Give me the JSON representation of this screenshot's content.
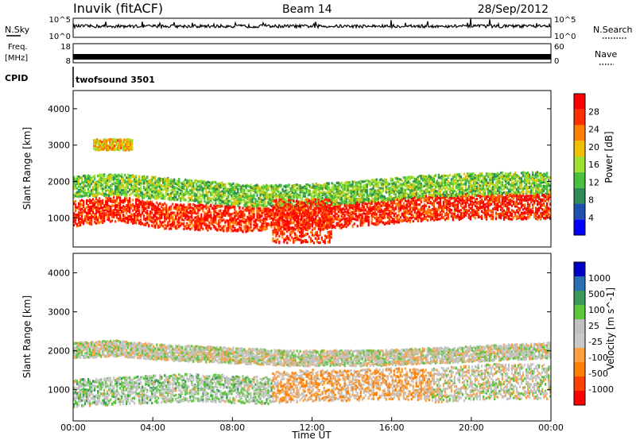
{
  "header": {
    "station": "Inuvik (fitACF)",
    "beam": "Beam 14",
    "date": "28/Sep/2012"
  },
  "noise_panel": {
    "left_label": "N.Sky",
    "right_label": "N.Search",
    "ticks": [
      "10^5",
      "10^0"
    ]
  },
  "freq_panel": {
    "left_label_1": "Freq.",
    "left_label_2": "[MHz]",
    "left_ticks": [
      "18",
      "8"
    ],
    "right_label": "Nave",
    "right_ticks": [
      "60",
      "0"
    ]
  },
  "cpid_panel": {
    "label": "CPID",
    "program": "twofsound 3501"
  },
  "colors": {
    "power": [
      "#0000ff",
      "#2050b0",
      "#2e8b57",
      "#48c040",
      "#a0e030",
      "#f0c000",
      "#ff8000",
      "#ff3000",
      "#ff0000"
    ],
    "velocity": [
      "#ff0000",
      "#ff4000",
      "#ff7f00",
      "#ffa040",
      "#c8c8c8",
      "#c0c0c0",
      "#5ac838",
      "#3a9a5a",
      "#2a70b0",
      "#0000c8"
    ]
  },
  "chart_data": [
    {
      "type": "heatmap",
      "name": "power",
      "xlabel": "",
      "ylabel": "Slant Range [km]",
      "xlim": [
        0,
        24
      ],
      "ylim": [
        200,
        4500
      ],
      "yticks": [
        "1000",
        "2000",
        "3000",
        "4000"
      ],
      "colorbar_label": "Power [dB]",
      "colorbar_ticks": [
        "4",
        "8",
        "12",
        "16",
        "20",
        "24",
        "28"
      ],
      "colorbar_range": [
        0,
        32
      ],
      "bands": [
        {
          "t_start": 0,
          "t_end": 24,
          "r_center": [
            1100,
            1250,
            1050,
            1000,
            950,
            1000,
            1050,
            1150,
            1250,
            1300,
            1300,
            1300
          ],
          "r_width": 700,
          "level": 28
        },
        {
          "t_start": 0,
          "t_end": 24,
          "r_center": [
            1850,
            1900,
            1800,
            1700,
            1600,
            1600,
            1650,
            1750,
            1850,
            1900,
            1950,
            1950
          ],
          "r_width": 600,
          "level": 14
        },
        {
          "t_start": 1,
          "t_end": 3,
          "r_center": [
            3000,
            3000,
            3000
          ],
          "r_width": 300,
          "level": 20
        },
        {
          "t_start": 10,
          "t_end": 13,
          "r_center": [
            900,
            900,
            900
          ],
          "r_width": 1200,
          "level": 28
        }
      ]
    },
    {
      "type": "heatmap",
      "name": "velocity",
      "xlabel": "Time UT",
      "ylabel": "Slant Range [km]",
      "xlim": [
        0,
        24
      ],
      "ylim": [
        200,
        4500
      ],
      "xticks": [
        "00:00",
        "04:00",
        "08:00",
        "12:00",
        "16:00",
        "20:00",
        "00:00"
      ],
      "yticks": [
        "1000",
        "2000",
        "3000",
        "4000"
      ],
      "colorbar_label": "Velocity [m s^-1]",
      "colorbar_ticks": [
        "-1000",
        "-500",
        "-100",
        "-25",
        "25",
        "100",
        "500",
        "1000"
      ],
      "colorbar_range": [
        -1200,
        1200
      ],
      "bands": [
        {
          "t_start": 0,
          "t_end": 10,
          "r_center": [
            900,
            950,
            1000,
            1050,
            1000,
            950
          ],
          "r_width": 700,
          "level": 150
        },
        {
          "t_start": 10,
          "t_end": 18,
          "r_center": [
            1050,
            1100,
            1100,
            1150,
            1100
          ],
          "r_width": 800,
          "level": -300
        },
        {
          "t_start": 0,
          "t_end": 24,
          "r_center": [
            2000,
            2050,
            1950,
            1900,
            1850,
            1800,
            1800,
            1800,
            1850,
            1900,
            1950,
            2000
          ],
          "r_width": 400,
          "level": 0
        },
        {
          "t_start": 18,
          "t_end": 24,
          "r_center": [
            1100,
            1200,
            1200
          ],
          "r_width": 900,
          "level": 0
        }
      ]
    }
  ]
}
